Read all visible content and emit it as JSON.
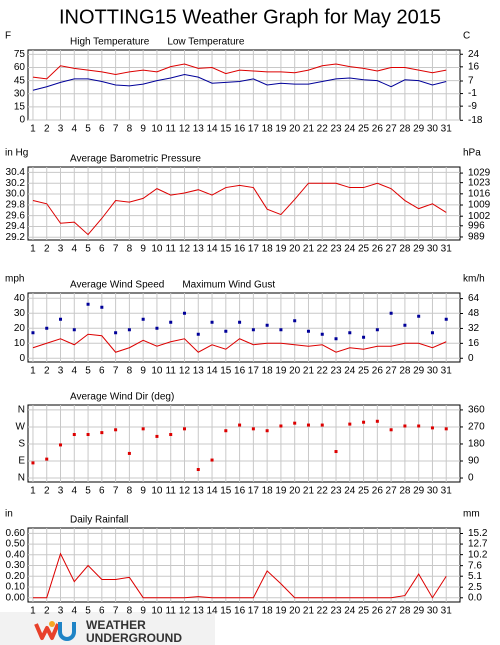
{
  "title": "INOTTING15 Weather Graph for May 2015",
  "chart_data": [
    {
      "type": "line",
      "ylabel": "F",
      "y2label": "C",
      "grid": true,
      "x": [
        1,
        2,
        3,
        4,
        5,
        6,
        7,
        8,
        9,
        10,
        11,
        12,
        13,
        14,
        15,
        16,
        17,
        18,
        19,
        20,
        21,
        22,
        23,
        24,
        25,
        26,
        27,
        28,
        29,
        30,
        31
      ],
      "xlim": [
        0.64,
        32
      ],
      "xticks": [
        1,
        2,
        3,
        4,
        5,
        6,
        7,
        8,
        9,
        10,
        11,
        12,
        13,
        14,
        15,
        16,
        17,
        18,
        19,
        20,
        21,
        22,
        23,
        24,
        25,
        26,
        27,
        28,
        29,
        30,
        31
      ],
      "ylim": [
        0,
        80
      ],
      "yticks": [
        0,
        15,
        30,
        45,
        60,
        75
      ],
      "y2lim": [
        -17.8,
        26.7
      ],
      "y2ticks": [
        -18,
        -9,
        -1,
        7,
        16,
        24
      ],
      "series": [
        {
          "name": "High Temperature",
          "color": "#dd0000",
          "mode": "line",
          "values": [
            49,
            47,
            62,
            59,
            57,
            55,
            52,
            55,
            57,
            55,
            61,
            64,
            59,
            60,
            53,
            57,
            56,
            55,
            55,
            54,
            57,
            62,
            64,
            61,
            59,
            56,
            60,
            60,
            57,
            54,
            57
          ]
        },
        {
          "name": "Low Temperature",
          "color": "#000099",
          "mode": "line",
          "values": [
            34,
            38,
            43,
            47,
            47,
            44,
            40,
            39,
            41,
            45,
            48,
            52,
            49,
            42,
            43,
            44,
            47,
            40,
            42,
            41,
            41,
            44,
            47,
            48,
            46,
            45,
            38,
            46,
            45,
            40,
            44
          ]
        }
      ]
    },
    {
      "type": "line",
      "ylabel": "in Hg",
      "y2label": "hPa",
      "grid": true,
      "x": [
        1,
        2,
        3,
        4,
        5,
        6,
        7,
        8,
        9,
        10,
        11,
        12,
        13,
        14,
        15,
        16,
        17,
        18,
        19,
        20,
        21,
        22,
        23,
        24,
        25,
        26,
        27,
        28,
        29,
        30,
        31
      ],
      "xlim": [
        0.64,
        32
      ],
      "xticks": [
        1,
        2,
        3,
        4,
        5,
        6,
        7,
        8,
        9,
        10,
        11,
        12,
        13,
        14,
        15,
        16,
        17,
        18,
        19,
        20,
        21,
        22,
        23,
        24,
        25,
        26,
        27,
        28,
        29,
        30,
        31
      ],
      "ylim": [
        29.15,
        30.5
      ],
      "yticks": [
        {
          "value": 29.2,
          "label": "29.2"
        },
        {
          "value": 29.4,
          "label": "29.4"
        },
        {
          "value": 29.6,
          "label": "29.6"
        },
        {
          "value": 29.8,
          "label": "29.8"
        },
        {
          "value": 30.0,
          "label": "30.0"
        },
        {
          "value": 30.2,
          "label": "30.2"
        },
        {
          "value": 30.4,
          "label": "30.4"
        }
      ],
      "y2lim": [
        987.1,
        1032.8
      ],
      "y2ticks": [
        989,
        996,
        1002,
        1009,
        1016,
        1023,
        1029
      ],
      "series": [
        {
          "name": "Average Barometric Pressure",
          "color": "#dd0000",
          "mode": "line",
          "values": [
            29.88,
            29.82,
            29.46,
            29.48,
            29.25,
            29.55,
            29.88,
            29.85,
            29.92,
            30.1,
            29.98,
            30.02,
            30.08,
            29.98,
            30.12,
            30.16,
            30.12,
            29.72,
            29.62,
            29.9,
            30.2,
            30.2,
            30.2,
            30.12,
            30.12,
            30.2,
            30.1,
            29.88,
            29.73,
            29.82,
            29.66
          ]
        }
      ]
    },
    {
      "type": "line",
      "ylabel": "mph",
      "y2label": "km/h",
      "grid": true,
      "x": [
        1,
        2,
        3,
        4,
        5,
        6,
        7,
        8,
        9,
        10,
        11,
        12,
        13,
        14,
        15,
        16,
        17,
        18,
        19,
        20,
        21,
        22,
        23,
        24,
        25,
        26,
        27,
        28,
        29,
        30,
        31
      ],
      "xlim": [
        0.64,
        32
      ],
      "xticks": [
        1,
        2,
        3,
        4,
        5,
        6,
        7,
        8,
        9,
        10,
        11,
        12,
        13,
        14,
        15,
        16,
        17,
        18,
        19,
        20,
        21,
        22,
        23,
        24,
        25,
        26,
        27,
        28,
        29,
        30,
        31
      ],
      "ylim": [
        -2.5,
        43.5
      ],
      "yticks": [
        0,
        10,
        20,
        30,
        40
      ],
      "y2lim": [
        -4.0,
        70.0
      ],
      "y2ticks": [
        0,
        16,
        32,
        48,
        64
      ],
      "series": [
        {
          "name": "Average Wind Speed",
          "color": "#dd0000",
          "mode": "line",
          "values": [
            7,
            10,
            13,
            9,
            16,
            15,
            4,
            7,
            12,
            8,
            11,
            13,
            4,
            9,
            6,
            13,
            9,
            10,
            10,
            9,
            8,
            9,
            4,
            7,
            6,
            8,
            8,
            10,
            10,
            7,
            11
          ]
        },
        {
          "name": "Maximum Wind Gust",
          "color": "#000099",
          "mode": "markers",
          "values": [
            17,
            20,
            26,
            19,
            36,
            34,
            17,
            19,
            26,
            20,
            24,
            30,
            16,
            24,
            18,
            24,
            19,
            22,
            19,
            25,
            18,
            16,
            13,
            17,
            14,
            19,
            30,
            22,
            28,
            17,
            26
          ]
        }
      ]
    },
    {
      "type": "scatter",
      "grid": true,
      "x": [
        1,
        2,
        3,
        4,
        5,
        6,
        7,
        8,
        9,
        10,
        11,
        12,
        13,
        14,
        15,
        16,
        17,
        18,
        19,
        20,
        21,
        22,
        23,
        24,
        25,
        26,
        27,
        28,
        29,
        30,
        31
      ],
      "xlim": [
        0.64,
        32
      ],
      "xticks": [
        1,
        2,
        3,
        4,
        5,
        6,
        7,
        8,
        9,
        10,
        11,
        12,
        13,
        14,
        15,
        16,
        17,
        18,
        19,
        20,
        21,
        22,
        23,
        24,
        25,
        26,
        27,
        28,
        29,
        30,
        31
      ],
      "ylim": [
        -21,
        386
      ],
      "yticks": [
        {
          "value": 0,
          "label": "N"
        },
        {
          "value": 90,
          "label": "E"
        },
        {
          "value": 180,
          "label": "S"
        },
        {
          "value": 270,
          "label": "W"
        },
        {
          "value": 360,
          "label": "N"
        }
      ],
      "y2lim": [
        -21,
        386
      ],
      "y2ticks": [
        0,
        90,
        180,
        270,
        360
      ],
      "series": [
        {
          "name": "Average Wind Dir (deg)",
          "color": "#dd0000",
          "mode": "markers",
          "values": [
            80,
            100,
            175,
            230,
            230,
            240,
            255,
            130,
            260,
            220,
            230,
            260,
            45,
            95,
            250,
            280,
            260,
            250,
            275,
            290,
            280,
            280,
            140,
            285,
            295,
            300,
            255,
            275,
            275,
            265,
            260
          ]
        }
      ]
    },
    {
      "type": "line",
      "ylabel": "in",
      "y2label": "mm",
      "grid": true,
      "x": [
        1,
        2,
        3,
        4,
        5,
        6,
        7,
        8,
        9,
        10,
        11,
        12,
        13,
        14,
        15,
        16,
        17,
        18,
        19,
        20,
        21,
        22,
        23,
        24,
        25,
        26,
        27,
        28,
        29,
        30,
        31
      ],
      "xlim": [
        0.64,
        32
      ],
      "xticks": [
        1,
        2,
        3,
        4,
        5,
        6,
        7,
        8,
        9,
        10,
        11,
        12,
        13,
        14,
        15,
        16,
        17,
        18,
        19,
        20,
        21,
        22,
        23,
        24,
        25,
        26,
        27,
        28,
        29,
        30,
        31
      ],
      "ylim": [
        -0.04,
        0.65
      ],
      "yticks": [
        {
          "value": 0,
          "label": "0.00"
        },
        {
          "value": 0.1,
          "label": "0.10"
        },
        {
          "value": 0.2,
          "label": "0.20"
        },
        {
          "value": 0.3,
          "label": "0.30"
        },
        {
          "value": 0.4,
          "label": "0.40"
        },
        {
          "value": 0.5,
          "label": "0.50"
        },
        {
          "value": 0.6,
          "label": "0.60"
        }
      ],
      "y2lim": [
        -1.0,
        16.5
      ],
      "y2ticks": [
        {
          "value": 0,
          "label": "0.0"
        },
        2.5,
        5.1,
        7.6,
        10.2,
        12.7,
        15.2
      ],
      "series": [
        {
          "name": "Daily Rainfall",
          "color": "#dd0000",
          "mode": "line",
          "values": [
            0,
            0,
            0.41,
            0.15,
            0.3,
            0.17,
            0.17,
            0.19,
            0,
            0,
            0,
            0,
            0.01,
            0,
            0,
            0,
            0,
            0.25,
            0.13,
            0,
            0,
            0,
            0,
            0,
            0,
            0,
            0,
            0.02,
            0.22,
            0,
            0.2
          ]
        }
      ]
    }
  ],
  "footer": {
    "brand_line1": "WEATHER",
    "brand_line2": "UNDERGROUND"
  }
}
